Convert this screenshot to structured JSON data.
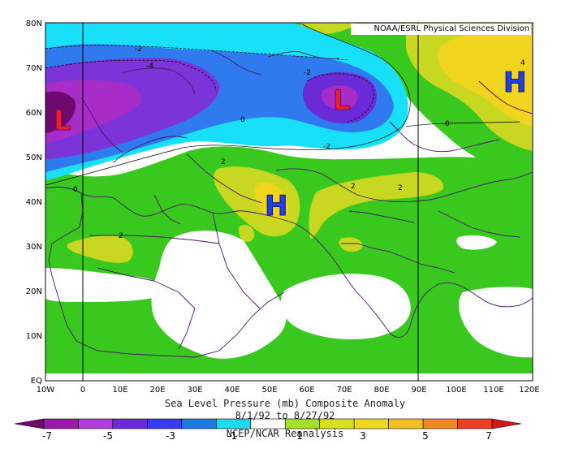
{
  "credit": "NOAA/ESRL Physical Sciences Division",
  "title": "Sea Level Pressure (mb) Composite Anomaly",
  "dates": "8/1/92  to 8/27/92",
  "source": "NCEP/NCAR Reanalysis",
  "lat_labels": [
    "80N",
    "70N",
    "60N",
    "50N",
    "40N",
    "30N",
    "20N",
    "10N",
    "EQ"
  ],
  "lon_labels": [
    "10W",
    "0",
    "10E",
    "20E",
    "30E",
    "40E",
    "50E",
    "60E",
    "70E",
    "80E",
    "90E",
    "100E",
    "110E",
    "120E"
  ],
  "colorbar": {
    "colors": [
      "#6e0a6e",
      "#9a1aa8",
      "#b43cdc",
      "#6a2ad8",
      "#3a3aee",
      "#1e7ae0",
      "#20d8f0",
      "#ffffff",
      "#a8e028",
      "#d8e020",
      "#eed820",
      "#f2c020",
      "#f08a20",
      "#e84020",
      "#d01818"
    ],
    "labels": [
      "-7",
      "-5",
      "-3",
      "-1",
      "1",
      "3",
      "5",
      "7"
    ]
  },
  "centers": [
    {
      "type": "L",
      "label": "L",
      "color": "#e8202a"
    },
    {
      "type": "L",
      "label": "L",
      "color": "#e8202a"
    },
    {
      "type": "H",
      "label": "H",
      "color": "#2040e8"
    },
    {
      "type": "H",
      "label": "H",
      "color": "#2040e8"
    }
  ],
  "contour_labels": [
    "-2",
    "-4",
    "-2",
    "-2",
    "0",
    "0",
    "0",
    "2",
    "2",
    "2",
    "2",
    "4"
  ],
  "colors": {
    "land_green": "#38c81e",
    "yellow_green": "#c8d820",
    "yellow": "#f0d41e",
    "cyan": "#18e0f8",
    "blue": "#2e7aee",
    "violet": "#7a34d8",
    "purple": "#a82cc8",
    "coast": "#4a1468"
  }
}
